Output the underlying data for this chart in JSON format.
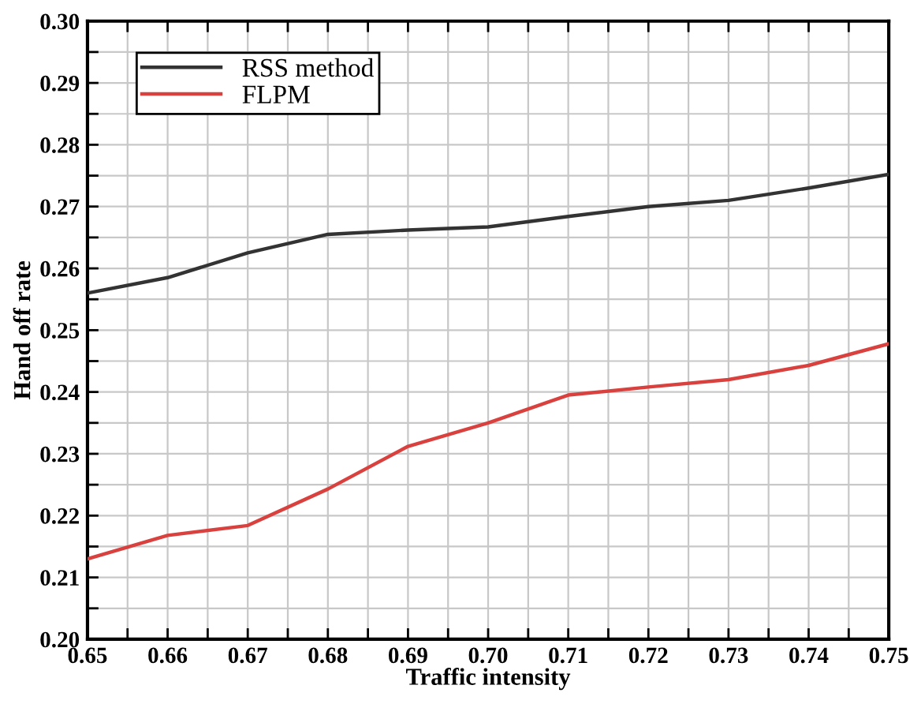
{
  "chart_data": {
    "type": "line",
    "xlabel": "Traffic intensity",
    "ylabel": "Hand off rate",
    "x": [
      0.65,
      0.66,
      0.67,
      0.68,
      0.69,
      0.7,
      0.71,
      0.72,
      0.73,
      0.74,
      0.75
    ],
    "series": [
      {
        "name": "RSS method",
        "color": "#333333",
        "values": [
          0.256,
          0.2585,
          0.2625,
          0.2655,
          0.2662,
          0.2667,
          0.2684,
          0.27,
          0.271,
          0.273,
          0.2752
        ]
      },
      {
        "name": "FLPM",
        "color": "#d9413f",
        "values": [
          0.213,
          0.2168,
          0.2184,
          0.2243,
          0.2312,
          0.235,
          0.2395,
          0.2408,
          0.242,
          0.2443,
          0.2478
        ]
      }
    ],
    "xlim": [
      0.65,
      0.75
    ],
    "xticks": [
      {
        "value": 0.65,
        "label": "0.65"
      },
      {
        "value": 0.655,
        "label": null
      },
      {
        "value": 0.66,
        "label": "0.66"
      },
      {
        "value": 0.665,
        "label": null
      },
      {
        "value": 0.67,
        "label": "0.67"
      },
      {
        "value": 0.675,
        "label": null
      },
      {
        "value": 0.68,
        "label": "0.68"
      },
      {
        "value": 0.685,
        "label": null
      },
      {
        "value": 0.69,
        "label": "0.69"
      },
      {
        "value": 0.695,
        "label": null
      },
      {
        "value": 0.7,
        "label": "0.70"
      },
      {
        "value": 0.705,
        "label": null
      },
      {
        "value": 0.71,
        "label": "0.71"
      },
      {
        "value": 0.715,
        "label": null
      },
      {
        "value": 0.72,
        "label": "0.72"
      },
      {
        "value": 0.725,
        "label": null
      },
      {
        "value": 0.73,
        "label": "0.73"
      },
      {
        "value": 0.735,
        "label": null
      },
      {
        "value": 0.74,
        "label": "0.74"
      },
      {
        "value": 0.745,
        "label": null
      },
      {
        "value": 0.75,
        "label": "0.75"
      }
    ],
    "ylim": [
      0.2,
      0.3
    ],
    "yticks": [
      {
        "value": 0.2,
        "label": "0.20"
      },
      {
        "value": 0.205,
        "label": null
      },
      {
        "value": 0.21,
        "label": "0.21"
      },
      {
        "value": 0.215,
        "label": null
      },
      {
        "value": 0.22,
        "label": "0.22"
      },
      {
        "value": 0.225,
        "label": null
      },
      {
        "value": 0.23,
        "label": "0.23"
      },
      {
        "value": 0.235,
        "label": null
      },
      {
        "value": 0.24,
        "label": "0.24"
      },
      {
        "value": 0.245,
        "label": null
      },
      {
        "value": 0.25,
        "label": "0.25"
      },
      {
        "value": 0.255,
        "label": null
      },
      {
        "value": 0.26,
        "label": "0.26"
      },
      {
        "value": 0.265,
        "label": null
      },
      {
        "value": 0.27,
        "label": "0.27"
      },
      {
        "value": 0.275,
        "label": null
      },
      {
        "value": 0.28,
        "label": "0.28"
      },
      {
        "value": 0.285,
        "label": null
      },
      {
        "value": 0.29,
        "label": "0.29"
      },
      {
        "value": 0.295,
        "label": null
      },
      {
        "value": 0.3,
        "label": "0.30"
      }
    ],
    "grid": true,
    "legend": "upper left",
    "marker": "none",
    "line_style": "solid"
  }
}
